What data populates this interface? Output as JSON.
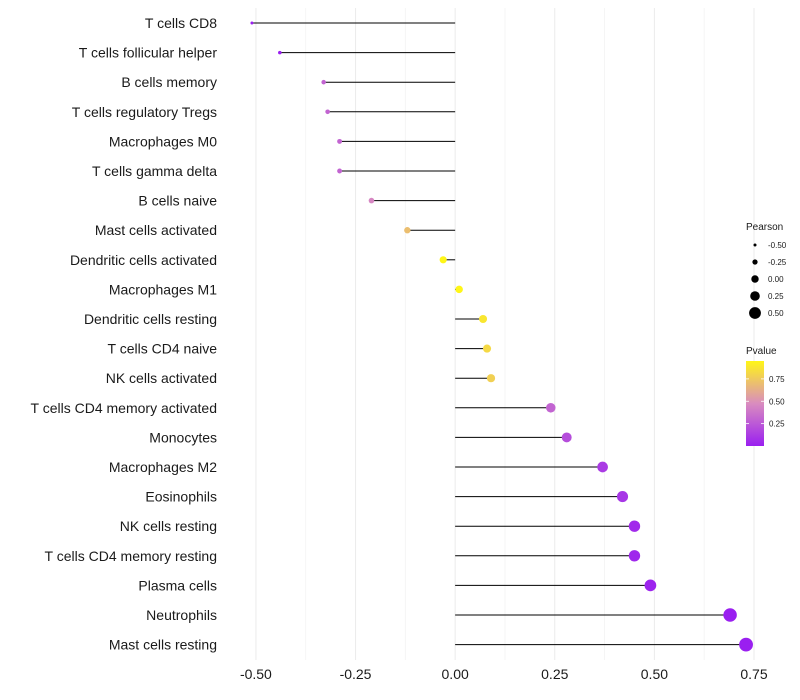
{
  "chart_data": {
    "type": "lollipop",
    "title": "",
    "xlabel": "",
    "ylabel": "",
    "xlim": [
      -0.56,
      0.76
    ],
    "xticks": [
      -0.5,
      -0.25,
      0.0,
      0.25,
      0.5,
      0.75
    ],
    "xtick_labels": [
      "-0.50",
      "-0.25",
      "0.00",
      "0.25",
      "0.50",
      "0.75"
    ],
    "grid": true,
    "color_scale": {
      "low": "#9a1ff0",
      "mid": "#d98cbf",
      "high": "#fff617"
    },
    "categories": [
      "T cells CD8",
      "T cells follicular helper",
      "B cells memory",
      "T cells regulatory  Tregs",
      "Macrophages M0",
      "T cells gamma delta",
      "B cells naive",
      "Mast cells activated",
      "Dendritic cells activated",
      "Macrophages M1",
      "Dendritic cells resting",
      "T cells CD4 naive",
      "NK cells activated",
      "T cells CD4 memory activated",
      "Monocytes",
      "Macrophages M2",
      "Eosinophils",
      "NK cells resting",
      "T cells CD4 memory resting",
      "Plasma cells",
      "Neutrophils",
      "Mast cells resting"
    ],
    "pearson": [
      -0.51,
      -0.44,
      -0.33,
      -0.32,
      -0.29,
      -0.29,
      -0.21,
      -0.12,
      -0.03,
      0.01,
      0.07,
      0.08,
      0.09,
      0.24,
      0.28,
      0.37,
      0.42,
      0.45,
      0.45,
      0.49,
      0.69,
      0.73
    ],
    "pvalue": [
      0.0,
      0.0,
      0.3,
      0.3,
      0.3,
      0.3,
      0.45,
      0.7,
      0.95,
      0.98,
      0.88,
      0.82,
      0.78,
      0.3,
      0.2,
      0.12,
      0.1,
      0.05,
      0.04,
      0.02,
      0.0,
      0.0
    ],
    "legend": {
      "size": {
        "title": "Pearson",
        "values": [
          -0.5,
          -0.25,
          0.0,
          0.25,
          0.5
        ],
        "labels": [
          "-0.50",
          "-0.25",
          "0.00",
          "0.25",
          "0.50"
        ]
      },
      "color": {
        "title": "Pvalue",
        "range": [
          0.0,
          0.95
        ],
        "ticks": [
          0.25,
          0.5,
          0.75
        ],
        "labels": [
          "0.25",
          "0.50",
          "0.75"
        ]
      }
    }
  }
}
